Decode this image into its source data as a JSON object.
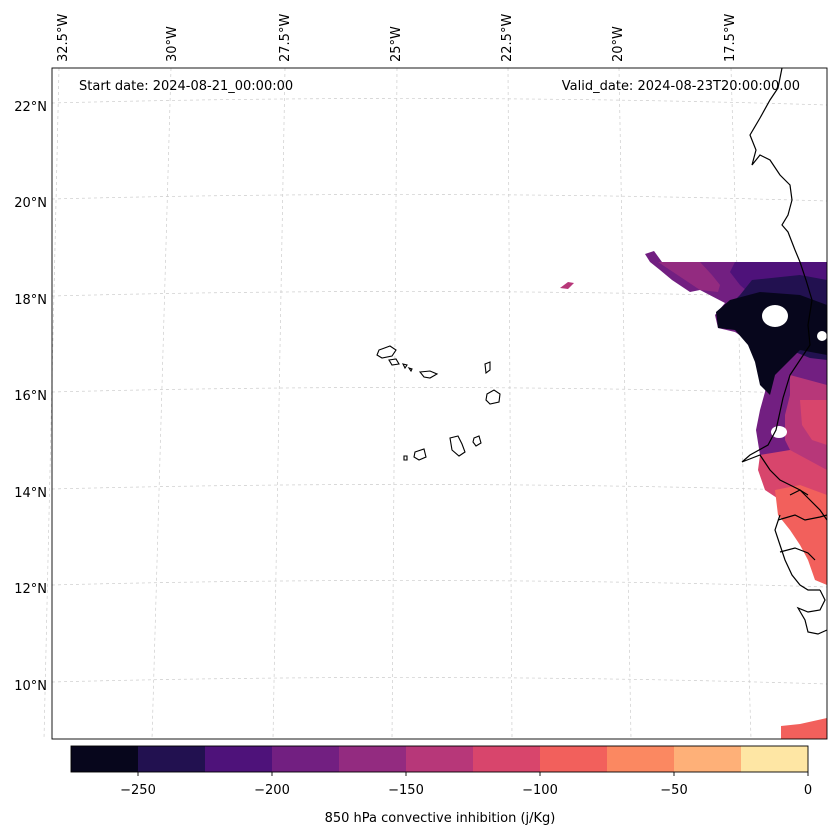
{
  "annotations": {
    "start_date": "Start date: 2024-08-21_00:00:00",
    "valid_date": "Valid_date: 2024-08-23T20:00:00.00"
  },
  "longitude_labels": [
    "32.5°W",
    "30°W",
    "27.5°W",
    "25°W",
    "22.5°W",
    "20°W",
    "17.5°W"
  ],
  "latitude_labels": [
    "22°N",
    "20°N",
    "18°N",
    "16°N",
    "14°N",
    "12°N",
    "10°N"
  ],
  "colorbar": {
    "label": "850 hPa convective inhibition (j/Kg)",
    "ticks": [
      "−250",
      "−200",
      "−150",
      "−100",
      "−50",
      "0"
    ],
    "levels": [
      -275,
      -250,
      -225,
      -200,
      -175,
      -150,
      -125,
      -100,
      -75,
      -50,
      -25,
      0
    ],
    "colors": [
      "#07061c",
      "#221150",
      "#4e127a",
      "#721f81",
      "#932b80",
      "#b73779",
      "#d8456c",
      "#f2605c",
      "#fb8861",
      "#feb078",
      "#fee6a4"
    ]
  }
}
